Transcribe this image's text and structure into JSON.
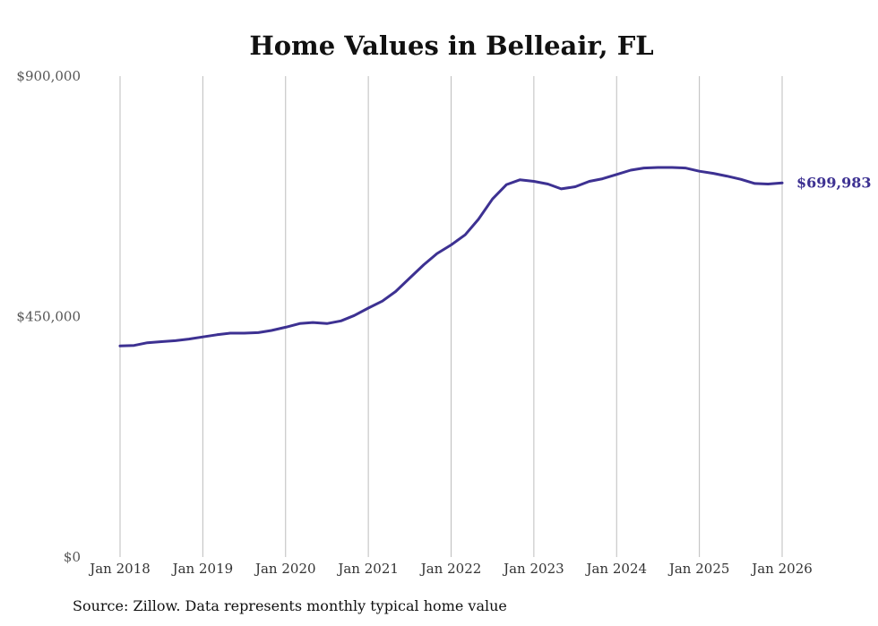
{
  "chart_data": {
    "type": "line",
    "title": "Home Values in Belleair, FL",
    "xlabel": "",
    "ylabel": "",
    "ylim": [
      0,
      900000
    ],
    "y_ticks": [
      {
        "value": 0,
        "label": "$0"
      },
      {
        "value": 450000,
        "label": "$450,000"
      },
      {
        "value": 900000,
        "label": "$900,000"
      }
    ],
    "x_range": [
      2018.0,
      2026.0
    ],
    "x_ticks": [
      {
        "value": 2018,
        "label": "Jan 2018"
      },
      {
        "value": 2019,
        "label": "Jan 2019"
      },
      {
        "value": 2020,
        "label": "Jan 2020"
      },
      {
        "value": 2021,
        "label": "Jan 2021"
      },
      {
        "value": 2022,
        "label": "Jan 2022"
      },
      {
        "value": 2023,
        "label": "Jan 2023"
      },
      {
        "value": 2024,
        "label": "Jan 2024"
      },
      {
        "value": 2025,
        "label": "Jan 2025"
      },
      {
        "value": 2026,
        "label": "Jan 2026"
      }
    ],
    "grid": {
      "vertical": true,
      "horizontal": false
    },
    "series": [
      {
        "name": "Typical home value",
        "color": "#3d3192",
        "points": [
          [
            2018.0,
            395000
          ],
          [
            2018.17,
            396000
          ],
          [
            2018.33,
            401000
          ],
          [
            2018.5,
            403000
          ],
          [
            2018.67,
            405000
          ],
          [
            2018.83,
            408000
          ],
          [
            2019.0,
            412000
          ],
          [
            2019.17,
            416000
          ],
          [
            2019.33,
            419000
          ],
          [
            2019.5,
            419000
          ],
          [
            2019.67,
            420000
          ],
          [
            2019.83,
            424000
          ],
          [
            2020.0,
            430000
          ],
          [
            2020.17,
            437000
          ],
          [
            2020.33,
            439000
          ],
          [
            2020.5,
            437000
          ],
          [
            2020.67,
            442000
          ],
          [
            2020.83,
            452000
          ],
          [
            2021.0,
            466000
          ],
          [
            2021.17,
            479000
          ],
          [
            2021.33,
            497000
          ],
          [
            2021.5,
            522000
          ],
          [
            2021.67,
            547000
          ],
          [
            2021.83,
            568000
          ],
          [
            2022.0,
            584000
          ],
          [
            2022.17,
            603000
          ],
          [
            2022.33,
            632000
          ],
          [
            2022.5,
            670000
          ],
          [
            2022.67,
            697000
          ],
          [
            2022.83,
            706000
          ],
          [
            2023.0,
            703000
          ],
          [
            2023.17,
            698000
          ],
          [
            2023.33,
            689000
          ],
          [
            2023.5,
            693000
          ],
          [
            2023.67,
            703000
          ],
          [
            2023.83,
            708000
          ],
          [
            2024.0,
            716000
          ],
          [
            2024.17,
            724000
          ],
          [
            2024.33,
            728000
          ],
          [
            2024.5,
            729000
          ],
          [
            2024.67,
            729000
          ],
          [
            2024.83,
            728000
          ],
          [
            2025.0,
            722000
          ],
          [
            2025.17,
            718000
          ],
          [
            2025.33,
            713000
          ],
          [
            2025.5,
            707000
          ],
          [
            2025.67,
            699000
          ],
          [
            2025.83,
            698000
          ],
          [
            2026.0,
            699983
          ]
        ]
      }
    ],
    "end_label": {
      "text": "$699,983",
      "color": "#3d3192"
    },
    "source": "Source: Zillow. Data represents monthly typical home value"
  }
}
